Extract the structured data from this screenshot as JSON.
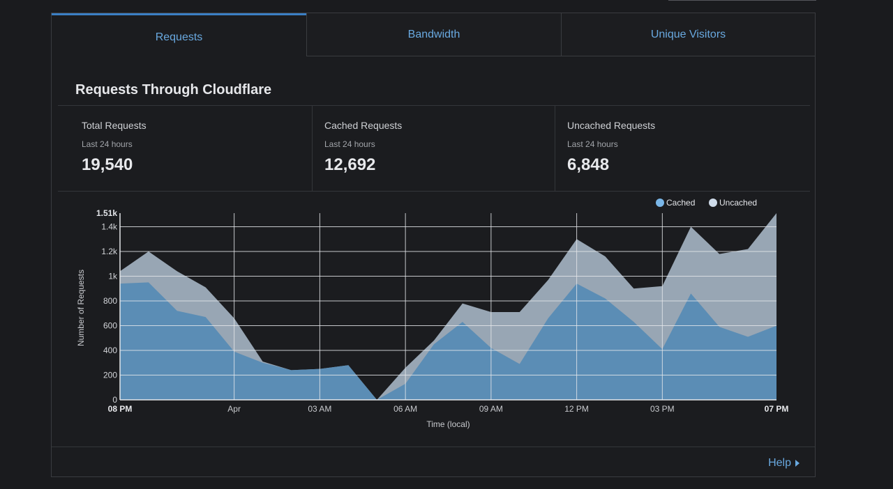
{
  "tabs": [
    {
      "label": "Requests"
    },
    {
      "label": "Bandwidth"
    },
    {
      "label": "Unique Visitors"
    }
  ],
  "section_title": "Requests Through Cloudflare",
  "stats": [
    {
      "label": "Total Requests",
      "period": "Last 24 hours",
      "value": "19,540"
    },
    {
      "label": "Cached Requests",
      "period": "Last 24 hours",
      "value": "12,692"
    },
    {
      "label": "Uncached Requests",
      "period": "Last 24 hours",
      "value": "6,848"
    }
  ],
  "help": {
    "label": "Help"
  },
  "colors": {
    "accent": "#69a9e0",
    "cached": "#5b8db5",
    "uncached": "#98a6b4",
    "background": "#1a1b1e"
  },
  "chart_data": {
    "type": "area",
    "stacked": true,
    "xlabel": "Time (local)",
    "ylabel": "Number of Requests",
    "ylim": [
      0,
      1510
    ],
    "y_max_label": "1.51k",
    "y_ticks": [
      0,
      200,
      400,
      600,
      800,
      1000,
      1200,
      1400
    ],
    "y_tick_labels": [
      "0",
      "200",
      "400",
      "600",
      "800",
      "1k",
      "1.2k",
      "1.4k"
    ],
    "x_ticks": [
      {
        "i": 0,
        "label": "08 PM",
        "bold": true
      },
      {
        "i": 4,
        "label": "Apr",
        "bold": false
      },
      {
        "i": 7,
        "label": "03 AM",
        "bold": false
      },
      {
        "i": 10,
        "label": "06 AM",
        "bold": false
      },
      {
        "i": 13,
        "label": "09 AM",
        "bold": false
      },
      {
        "i": 16,
        "label": "12 PM",
        "bold": false
      },
      {
        "i": 19,
        "label": "03 PM",
        "bold": false
      },
      {
        "i": 23,
        "label": "07 PM",
        "bold": true
      }
    ],
    "x": [
      0,
      1,
      2,
      3,
      4,
      5,
      6,
      7,
      8,
      9,
      10,
      11,
      12,
      13,
      14,
      15,
      16,
      17,
      18,
      19,
      20,
      21,
      22,
      23
    ],
    "legend": {
      "placement": "top-right"
    },
    "series": [
      {
        "name": "Cached",
        "values": [
          940,
          950,
          720,
          670,
          390,
          300,
          240,
          250,
          280,
          0,
          130,
          450,
          630,
          420,
          290,
          660,
          940,
          820,
          630,
          410,
          860,
          590,
          510,
          600
        ]
      },
      {
        "name": "Uncached",
        "values": [
          100,
          250,
          320,
          240,
          270,
          10,
          0,
          0,
          0,
          0,
          130,
          30,
          150,
          290,
          420,
          310,
          360,
          340,
          270,
          510,
          540,
          590,
          710,
          910
        ]
      }
    ]
  }
}
